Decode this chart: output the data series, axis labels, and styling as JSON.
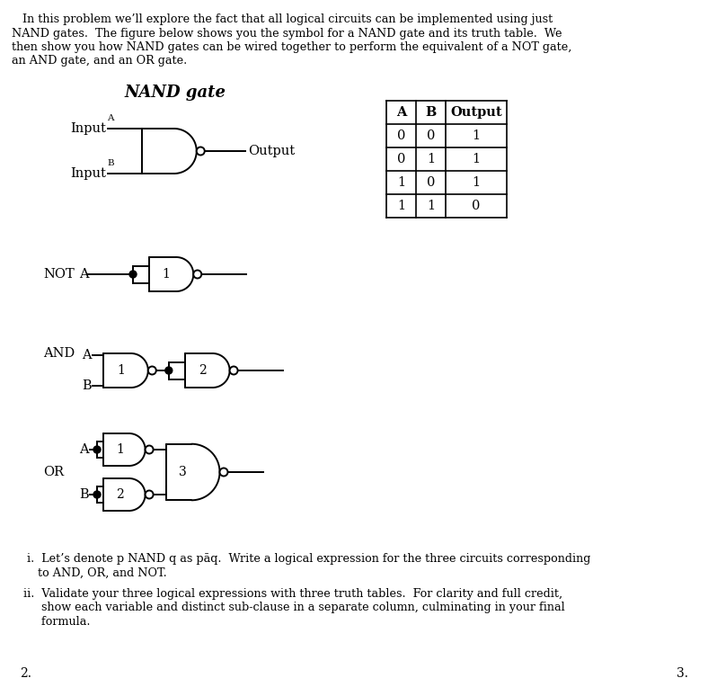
{
  "bg_color": "#ffffff",
  "text_color": "#000000",
  "line_color": "#000000",
  "intro_lines": [
    "   In this problem we’ll explore the fact that all logical circuits can be implemented using just",
    "NAND gates.  The figure below shows you the symbol for a NAND gate and its truth table.  We",
    "then show you how NAND gates can be wired together to perform the equivalent of a NOT gate,",
    "an AND gate, and an OR gate."
  ],
  "nand_title": "NAND gate",
  "truth_headers": [
    "A",
    "B",
    "Output"
  ],
  "truth_rows": [
    [
      "0",
      "0",
      "1"
    ],
    [
      "0",
      "1",
      "1"
    ],
    [
      "1",
      "0",
      "1"
    ],
    [
      "1",
      "1",
      "0"
    ]
  ],
  "item_i_1": "  i.  Let’s denote p NAND q as pāq.  Write a logical expression for the three circuits corresponding",
  "item_i_2": "     to AND, OR, and NOT.",
  "item_ii_1": " ii.  Validate your three logical expressions with three truth tables.  For clarity and full credit,",
  "item_ii_2": "      show each variable and distinct sub-clause in a separate column, culminating in your final",
  "item_ii_3": "      formula.",
  "page_left": "2.",
  "page_right": "3."
}
